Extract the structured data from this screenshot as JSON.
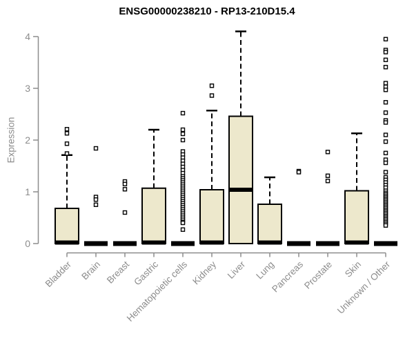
{
  "chart_data": {
    "type": "boxplot",
    "title": "ENSG00000238210 - RP13-210D15.4",
    "ylabel": "Expression",
    "xlabel": "",
    "ylim": [
      0,
      4
    ],
    "yticks": [
      "0",
      "1",
      "2",
      "3",
      "4"
    ],
    "grid": false,
    "legend": "none",
    "colors": {
      "background": "#FFFFFF",
      "box_fill": "#EDE8CC",
      "box_stroke": "#000000",
      "median": "#000000",
      "whisker": "#000000",
      "outlier_stroke": "#000000",
      "axis": "#8C8C8C",
      "tick_label": "#8C8C8C",
      "title": "#000000"
    },
    "categories": [
      "Bladder",
      "Brain",
      "Breast",
      "Gastric",
      "Hematopoietic cells",
      "Kidney",
      "Liver",
      "Lung",
      "Pancreas",
      "Prostate",
      "Skin",
      "Unknown / Other"
    ],
    "series": [
      {
        "category": "Bladder",
        "q1": 0,
        "median": 0.02,
        "q3": 0.68,
        "whisker_low": 0,
        "whisker_high": 1.71,
        "outliers": [
          2.21,
          2.13,
          1.93,
          1.74
        ]
      },
      {
        "category": "Brain",
        "q1": 0,
        "median": 0,
        "q3": 0,
        "whisker_low": 0,
        "whisker_high": 0,
        "outliers": [
          1.84,
          0.9,
          0.85,
          0.75
        ]
      },
      {
        "category": "Breast",
        "q1": 0,
        "median": 0,
        "q3": 0,
        "whisker_low": 0,
        "whisker_high": 0,
        "outliers": [
          1.2,
          1.15,
          1.05,
          0.6
        ]
      },
      {
        "category": "Gastric",
        "q1": 0,
        "median": 0.02,
        "q3": 1.07,
        "whisker_low": 0,
        "whisker_high": 2.2,
        "outliers": []
      },
      {
        "category": "Hematopoietic cells",
        "q1": 0,
        "median": 0,
        "q3": 0,
        "whisker_low": 0,
        "whisker_high": 0,
        "outliers": [
          2.52,
          2.2,
          2.12,
          2.0,
          1.78,
          1.72,
          1.66,
          1.6,
          1.54,
          1.48,
          1.42,
          1.36,
          1.3,
          1.26,
          1.22,
          1.18,
          1.14,
          1.1,
          1.06,
          1.02,
          0.98,
          0.94,
          0.9,
          0.86,
          0.82,
          0.78,
          0.74,
          0.7,
          0.66,
          0.62,
          0.58,
          0.54,
          0.5,
          0.46,
          0.42,
          0.4,
          0.27
        ]
      },
      {
        "category": "Kidney",
        "q1": 0,
        "median": 0.02,
        "q3": 1.04,
        "whisker_low": 0,
        "whisker_high": 2.57,
        "outliers": [
          3.05,
          2.86
        ]
      },
      {
        "category": "Liver",
        "q1": 0,
        "median": 1.04,
        "q3": 2.46,
        "whisker_low": 0,
        "whisker_high": 4.1,
        "outliers": []
      },
      {
        "category": "Lung",
        "q1": 0,
        "median": 0.02,
        "q3": 0.76,
        "whisker_low": 0,
        "whisker_high": 1.28,
        "outliers": []
      },
      {
        "category": "Pancreas",
        "q1": 0,
        "median": 0,
        "q3": 0,
        "whisker_low": 0,
        "whisker_high": 0,
        "outliers": [
          1.4,
          1.38
        ]
      },
      {
        "category": "Prostate",
        "q1": 0,
        "median": 0,
        "q3": 0,
        "whisker_low": 0,
        "whisker_high": 0,
        "outliers": [
          1.77,
          1.31,
          1.21
        ]
      },
      {
        "category": "Skin",
        "q1": 0,
        "median": 0.02,
        "q3": 1.02,
        "whisker_low": 0,
        "whisker_high": 2.13,
        "outliers": []
      },
      {
        "category": "Unknown / Other",
        "q1": 0,
        "median": 0,
        "q3": 0,
        "whisker_low": 0,
        "whisker_high": 0,
        "outliers": [
          3.95,
          3.74,
          3.7,
          3.55,
          3.41,
          3.1,
          3.03,
          2.97,
          2.73,
          2.53,
          2.38,
          2.34,
          2.1,
          1.97,
          1.75,
          1.62,
          1.56,
          1.38,
          1.28,
          1.23,
          1.18,
          1.13,
          1.08,
          1.02,
          0.98,
          0.95,
          0.92,
          0.89,
          0.86,
          0.83,
          0.8,
          0.77,
          0.74,
          0.71,
          0.68,
          0.65,
          0.62,
          0.59,
          0.56,
          0.53,
          0.5,
          0.47,
          0.44,
          0.41,
          0.38,
          0.35
        ]
      }
    ]
  }
}
